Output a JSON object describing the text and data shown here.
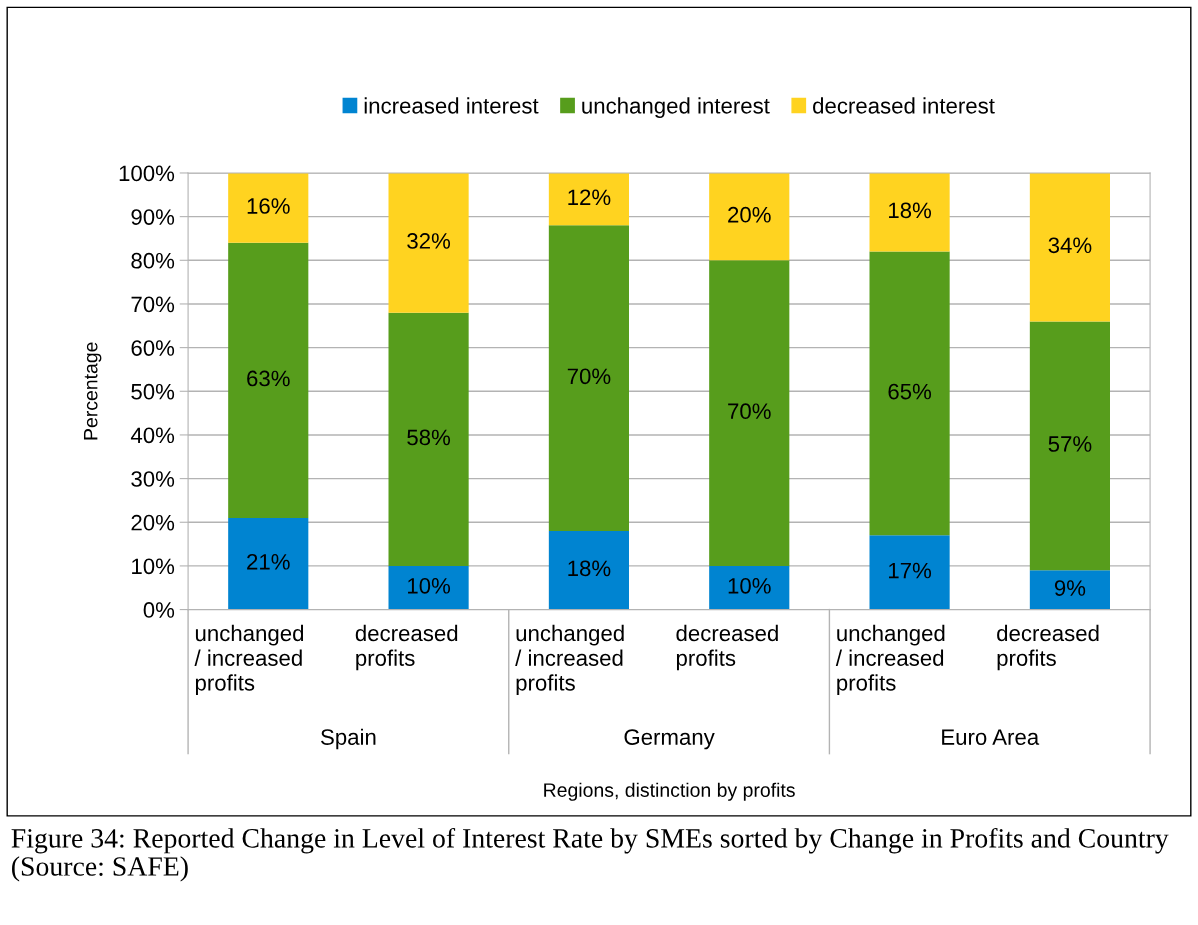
{
  "chart_data": {
    "type": "bar",
    "stacked": true,
    "categories": [
      "unchanged\n/ increased\nprofits",
      "decreased\nprofits",
      "unchanged\n/ increased\nprofits",
      "decreased\nprofits",
      "unchanged\n/ increased\nprofits",
      "decreased\nprofits"
    ],
    "series": [
      {
        "name": "increased interest",
        "color": "#0084d1",
        "values": [
          21,
          10,
          18,
          10,
          17,
          9
        ],
        "value_labels": [
          "21%",
          "10%",
          "18%",
          "10%",
          "17%",
          "9%"
        ]
      },
      {
        "name": "unchanged interest",
        "color": "#579d1c",
        "values": [
          63,
          58,
          70,
          70,
          65,
          57
        ],
        "value_labels": [
          "63%",
          "58%",
          "70%",
          "70%",
          "65%",
          "57%"
        ]
      },
      {
        "name": "decreased interest",
        "color": "#ffd320",
        "values": [
          16,
          32,
          12,
          20,
          18,
          34
        ],
        "value_labels": [
          "16%",
          "32%",
          "12%",
          "20%",
          "18%",
          "34%"
        ]
      }
    ],
    "ylim": [
      0,
      100
    ],
    "yticks": [
      {
        "value": 0,
        "label": "0%"
      },
      {
        "value": 10,
        "label": "10%"
      },
      {
        "value": 20,
        "label": "20%"
      },
      {
        "value": 30,
        "label": "30%"
      },
      {
        "value": 40,
        "label": "40%"
      },
      {
        "value": 50,
        "label": "50%"
      },
      {
        "value": 60,
        "label": "60%"
      },
      {
        "value": 70,
        "label": "70%"
      },
      {
        "value": 80,
        "label": "80%"
      },
      {
        "value": 90,
        "label": "90%"
      },
      {
        "value": 100,
        "label": "100%"
      }
    ],
    "grid": "y",
    "legend": "top",
    "xlabel": "Regions, distinction by profits",
    "ylabel": "Percentage",
    "annotations": [
      "Spain",
      "Germany",
      "Euro Area",
      "Figure 34: Reported Change in Level of Interest Rate by SMEs sorted by Change in Profits and Country (Source: SAFE)"
    ]
  }
}
